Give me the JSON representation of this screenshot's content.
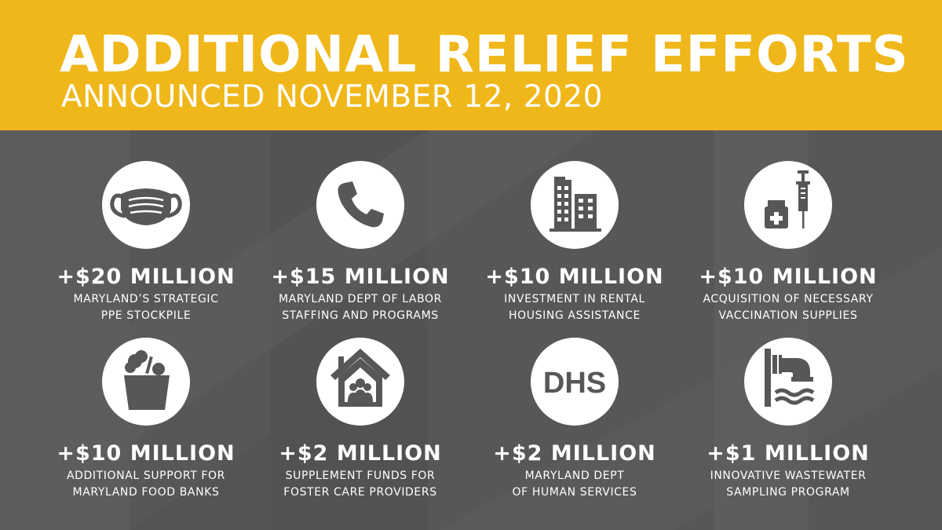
{
  "header": {
    "title": "ADDITIONAL RELIEF EFFORTS",
    "subtitle": "ANNOUNCED NOVEMBER 12, 2020"
  },
  "colors": {
    "header_bg": "#f0b71a",
    "body_bg": "#575757",
    "icon_circle": "#ffffff",
    "icon_fill": "#575757",
    "text": "#ffffff"
  },
  "items": [
    {
      "icon": "face-mask-icon",
      "amount": "+$20 MILLION",
      "line1": "MARYLAND’S STRATEGIC",
      "line2": "PPE STOCKPILE"
    },
    {
      "icon": "phone-icon",
      "amount": "+$15 MILLION",
      "line1": "MARYLAND DEPT OF LABOR",
      "line2": "STAFFING AND PROGRAMS"
    },
    {
      "icon": "buildings-icon",
      "amount": "+$10 MILLION",
      "line1": "INVESTMENT IN RENTAL",
      "line2": "HOUSING ASSISTANCE"
    },
    {
      "icon": "vaccine-icon",
      "amount": "+$10 MILLION",
      "line1": "ACQUISITION OF NECESSARY",
      "line2": "VACCINATION SUPPLIES"
    },
    {
      "icon": "grocery-bag-icon",
      "amount": "+$10 MILLION",
      "line1": "ADDITIONAL SUPPORT FOR",
      "line2": "MARYLAND FOOD BANKS"
    },
    {
      "icon": "foster-home-icon",
      "amount": "+$2 MILLION",
      "line1": "SUPPLEMENT FUNDS FOR",
      "line2": "FOSTER CARE PROVIDERS"
    },
    {
      "icon": "dhs-logo-icon",
      "logo_text": "DHS",
      "amount": "+$2 MILLION",
      "line1": "MARYLAND DEPT",
      "line2": "OF HUMAN SERVICES"
    },
    {
      "icon": "wastewater-pipe-icon",
      "amount": "+$1 MILLION",
      "line1": "INNOVATIVE WASTEWATER",
      "line2": "SAMPLING PROGRAM"
    }
  ]
}
